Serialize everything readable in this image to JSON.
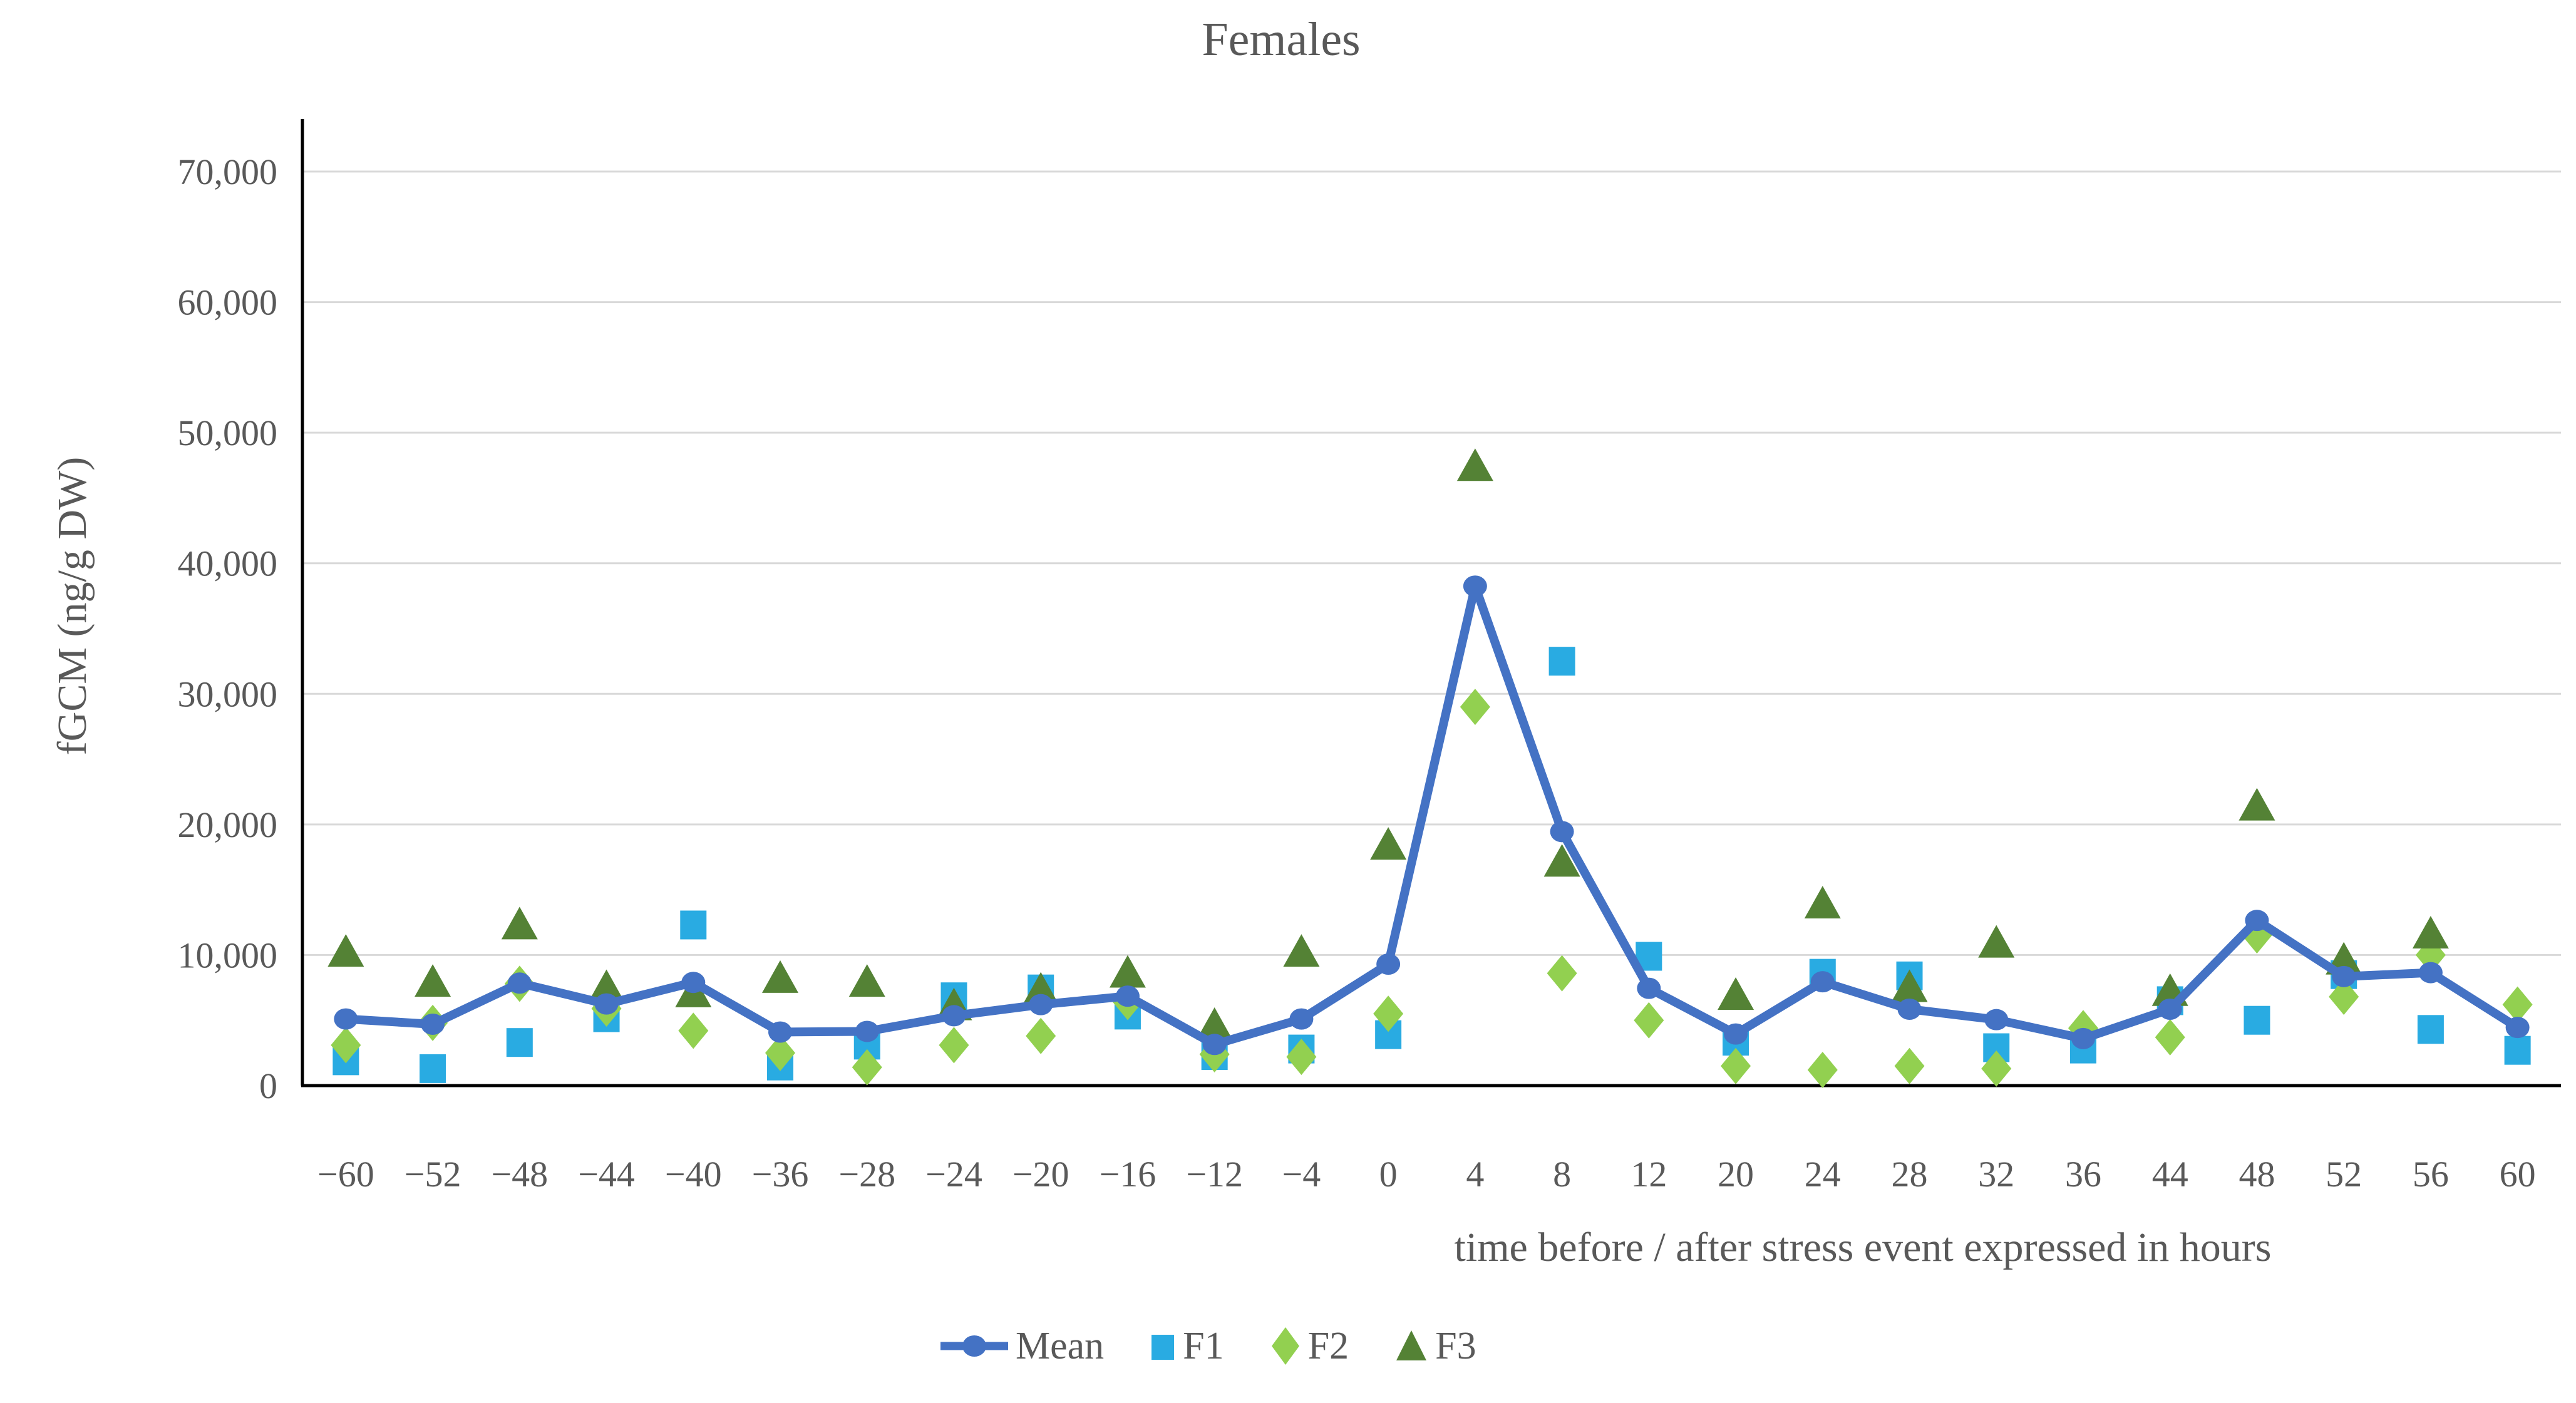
{
  "page": {
    "background": "#FFFFFF"
  },
  "colors": {
    "text": "#595959",
    "gridline": "#D9D9D9",
    "axis": "#000000",
    "mean_blue": "#4472C4",
    "f1_cyan": "#29ABE2",
    "f2_light_green": "#92D050",
    "f3_dark_green": "#548235"
  },
  "chart_data": {
    "type": "line",
    "title": "Females",
    "xlabel": "time before / after stress event expressed in hours",
    "ylabel": "fGCM (ng/g DW)",
    "ylim": [
      0,
      70000
    ],
    "y_tick_step": 10000,
    "y_tick_labels": [
      "0",
      "10,000",
      "20,000",
      "30,000",
      "40,000",
      "50,000",
      "60,000",
      "70,000"
    ],
    "grid": "horizontal",
    "legend_position": "bottom-center",
    "x": [
      -60,
      -52,
      -48,
      -44,
      -40,
      -36,
      -28,
      -24,
      -20,
      -16,
      -12,
      -4,
      0,
      4,
      8,
      12,
      20,
      24,
      28,
      32,
      36,
      44,
      48,
      52,
      56,
      60
    ],
    "category_labels": [
      "−60",
      "−52",
      "−48",
      "−44",
      "−40",
      "−36",
      "−28",
      "−24",
      "−20",
      "−16",
      "−12",
      "−4",
      "0",
      "4",
      "8",
      "12",
      "20",
      "24",
      "28",
      "32",
      "36",
      "44",
      "48",
      "52",
      "56",
      "60"
    ],
    "series": [
      {
        "name": "Mean",
        "type": "line",
        "marker": "circle",
        "color": "#4472C4",
        "values": [
          5100,
          4700,
          7850,
          6250,
          7900,
          4100,
          4150,
          5350,
          6200,
          6850,
          3150,
          5100,
          9300,
          38250,
          19450,
          7450,
          3950,
          7950,
          5850,
          5050,
          3600,
          5850,
          12650,
          8350,
          8650,
          4450
        ]
      },
      {
        "name": "F1",
        "type": "scatter",
        "marker": "square",
        "color": "#29ABE2",
        "values": [
          1900,
          1300,
          3300,
          5200,
          12300,
          1500,
          3100,
          6800,
          7400,
          5400,
          2300,
          2800,
          3900,
          null,
          32500,
          9900,
          3400,
          8600,
          8400,
          2900,
          2800,
          6500,
          5000,
          8500,
          4300,
          2700
        ]
      },
      {
        "name": "F2",
        "type": "scatter",
        "marker": "diamond",
        "color": "#92D050",
        "values": [
          3100,
          4800,
          7800,
          5900,
          4200,
          2500,
          1400,
          3100,
          3800,
          6400,
          2400,
          2200,
          5500,
          29000,
          8600,
          5000,
          1500,
          1200,
          1500,
          1300,
          4400,
          3700,
          11500,
          6800,
          10000,
          6200
        ]
      },
      {
        "name": "F3",
        "type": "scatter",
        "marker": "triangle",
        "color": "#548235",
        "values": [
          10300,
          8000,
          12400,
          7600,
          7200,
          8300,
          8000,
          6200,
          7400,
          8700,
          4700,
          10300,
          18500,
          47500,
          17200,
          null,
          7000,
          14000,
          7600,
          11000,
          null,
          7300,
          21500,
          9700,
          11700,
          null
        ]
      }
    ]
  }
}
